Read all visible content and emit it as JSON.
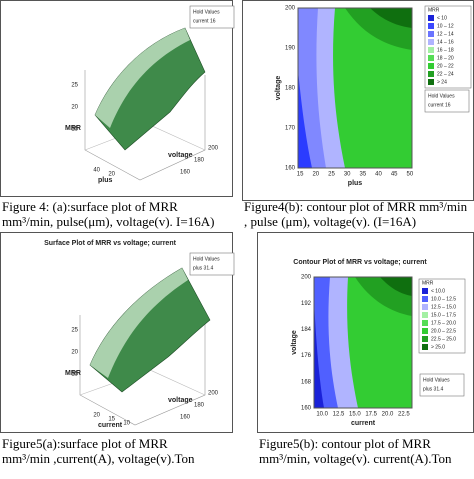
{
  "panels": [
    {
      "type": "surface",
      "z_label": "MRR",
      "x_label": "plus",
      "y_label": "voltage",
      "z_ticks": [
        "25",
        "20",
        "15"
      ],
      "x_ticks": [
        "40",
        "20"
      ],
      "y_ticks": [
        "200",
        "180",
        "160"
      ],
      "hold": [
        "Hold Values",
        "current 16"
      ],
      "caption": [
        "Figure 4: (a):surface plot of MRR",
        "mm³/min, pulse(μm), voltage(v).   I=16A)"
      ]
    },
    {
      "type": "contour",
      "x_label": "plus",
      "y_label": "voltage",
      "x_ticks": [
        "15",
        "20",
        "25",
        "30",
        "35",
        "40",
        "45",
        "50"
      ],
      "y_ticks": [
        "200",
        "190",
        "180",
        "170",
        "160"
      ],
      "legend_title": "MRR",
      "legend": [
        "< 10",
        "10 – 12",
        "12 – 14",
        "14 – 16",
        "16 – 18",
        "18 – 20",
        "20 – 22",
        "22 – 24",
        "> 24"
      ],
      "hold": [
        "Hold Values",
        "current 16"
      ],
      "caption": [
        "Figure4(b): contour plot of MRR mm³/min",
        ", pulse (μm), voltage(v). (I=16A)"
      ]
    },
    {
      "type": "surface",
      "title": "Surface Plot of MRR vs voltage; current",
      "z_label": "MRR",
      "x_label": "current",
      "y_label": "voltage",
      "z_ticks": [
        "25",
        "20",
        "15"
      ],
      "x_ticks": [
        "20",
        "15",
        "10"
      ],
      "y_ticks": [
        "200",
        "180",
        "160"
      ],
      "hold": [
        "Hold Values",
        "plus 31.4"
      ],
      "caption": [
        "Figure5(a):surface plot of MRR",
        "mm³/min ,current(A), voltage(v).Ton"
      ]
    },
    {
      "type": "contour",
      "title": "Contour Plot of MRR vs voltage; current",
      "x_label": "current",
      "y_label": "voltage",
      "x_ticks": [
        "10.0",
        "12.5",
        "15.0",
        "17.5",
        "20.0",
        "22.5"
      ],
      "y_ticks": [
        "200",
        "192",
        "184",
        "176",
        "168",
        "160"
      ],
      "legend_title": "MRR",
      "legend": [
        "< 10.0",
        "10.0 – 12.5",
        "12.5 – 15.0",
        "15.0 – 17.5",
        "17.5 – 20.0",
        "20.0 – 22.5",
        "22.5 – 25.0",
        "> 25.0"
      ],
      "hold": [
        "Hold Values",
        "plus 31.4"
      ],
      "caption": [
        "Figure5(b): contour plot of MRR",
        "mm³/min,  voltage(v). current(A).Ton"
      ]
    }
  ]
}
